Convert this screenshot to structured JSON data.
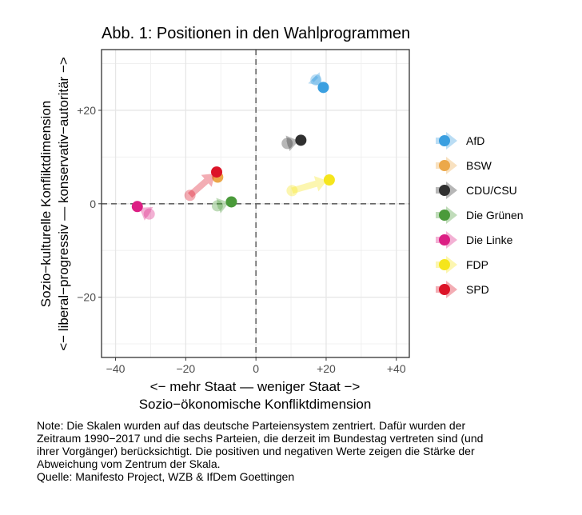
{
  "chart_data": {
    "type": "scatter",
    "title": "Abb. 1: Positionen in den Wahlprogrammen",
    "xlabel_line1": "<− mehr Staat — weniger Staat −>",
    "xlabel_line2": "Sozio−ökonomische Konfliktdimension",
    "ylabel_line1": "Sozio−kulturelle Konfliktdimension",
    "ylabel_line2": "<− liberal−progressiv — konservativ−autoritär −>",
    "xlim": [
      -44,
      43.7
    ],
    "ylim": [
      -32.9,
      33
    ],
    "x_ticks": [
      {
        "v": -40,
        "label": "−40"
      },
      {
        "v": -20,
        "label": "−20"
      },
      {
        "v": 0,
        "label": "0"
      },
      {
        "v": 20,
        "label": "+20"
      },
      {
        "v": 40,
        "label": "+40"
      }
    ],
    "y_ticks": [
      {
        "v": -20,
        "label": "−20"
      },
      {
        "v": 0,
        "label": "0"
      },
      {
        "v": 20,
        "label": "+20"
      }
    ],
    "minor_x": [
      -30,
      -10,
      10,
      30
    ],
    "minor_y": [
      -30,
      -10,
      10,
      30
    ],
    "grid": true,
    "legend_position": "right",
    "series": [
      {
        "name": "AfD",
        "color": "#3a9fe0",
        "from": [
          17.1,
          26.5
        ],
        "to": [
          19.2,
          24.9
        ]
      },
      {
        "name": "BSW",
        "color": "#eca84a",
        "from": null,
        "to": [
          -10.9,
          5.7
        ]
      },
      {
        "name": "CDU/CSU",
        "color": "#303030",
        "from": [
          8.9,
          12.9
        ],
        "to": [
          12.8,
          13.6
        ]
      },
      {
        "name": "Die Grünen",
        "color": "#4a9a3a",
        "from": [
          -11.0,
          -0.45
        ],
        "to": [
          -7.0,
          0.4
        ]
      },
      {
        "name": "Die Linke",
        "color": "#dc1f84",
        "from": [
          -30.4,
          -2.2
        ],
        "to": [
          -33.8,
          -0.6
        ]
      },
      {
        "name": "FDP",
        "color": "#f5e51c",
        "from": [
          10.3,
          2.8
        ],
        "to": [
          20.9,
          5.1
        ]
      },
      {
        "name": "SPD",
        "color": "#dc1428",
        "from": [
          -18.8,
          1.8
        ],
        "to": [
          -11.2,
          6.8
        ]
      }
    ]
  },
  "note": {
    "lines": [
      "Note: Die Skalen wurden auf das deutsche Parteiensystem zentriert. Dafür wurden der",
      "Zeitraum 1990−2017 und die sechs Parteien, die derzeit im Bundestag vertreten sind (und",
      "ihrer Vorgänger) berücksichtigt. Die positiven und negativen Werte zeigen die Stärke der",
      "Abweichung vom Zentrum der Skala."
    ],
    "source": "Quelle: Manifesto Project, WZB & IfDem Goettingen"
  }
}
